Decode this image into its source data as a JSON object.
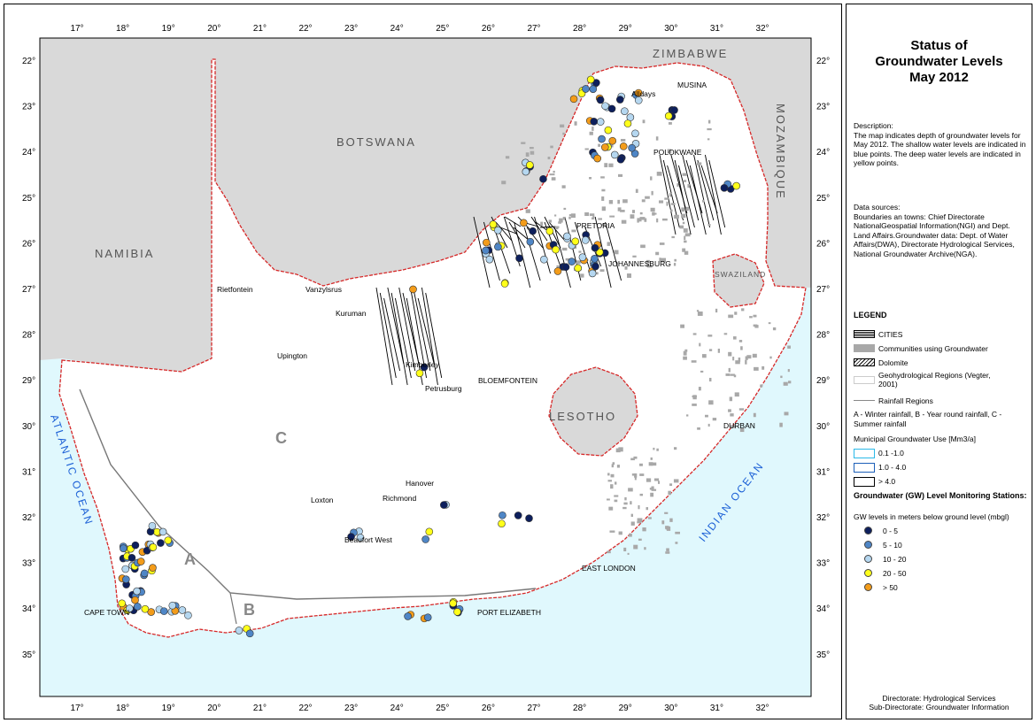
{
  "map": {
    "longitude_labels": [
      "17°",
      "18°",
      "19°",
      "20°",
      "21°",
      "22°",
      "23°",
      "24°",
      "25°",
      "26°",
      "27°",
      "28°",
      "29°",
      "30°",
      "31°",
      "32°"
    ],
    "latitude_labels": [
      "22°",
      "23°",
      "24°",
      "25°",
      "26°",
      "27°",
      "28°",
      "29°",
      "30°",
      "31°",
      "32°",
      "33°",
      "34°",
      "35°"
    ],
    "countries": {
      "zimbabwe": "ZIMBABWE",
      "botswana": "BOTSWANA",
      "namibia": "NAMIBIA",
      "mozambique": "MOZAMBIQUE",
      "lesotho": "LESOTHO",
      "swaziland": "SWAZILAND"
    },
    "oceans": {
      "atlantic": "ATLANTIC OCEAN",
      "indian": "INDIAN OCEAN"
    },
    "rainfall_zones": {
      "a": "A",
      "b": "B",
      "c": "C"
    },
    "cities": {
      "musina": "MUSINA",
      "alldays": "Alldays",
      "polokwane": "POLOKWANE",
      "pretoria": "PRETORIA",
      "johannesburg": "JOHANNESBURG",
      "rietfontein": "Rietfontein",
      "vanzylsrus": "Vanzylsrus",
      "kuruman": "Kuruman",
      "upington": "Upington",
      "kimberley": "Kimberley",
      "petrusburg": "Petrusburg",
      "bloemfontein": "BLOEMFONTEIN",
      "durban": "DURBAN",
      "hanover": "Hanover",
      "loxton": "Loxton",
      "richmond": "Richmond",
      "beaufort_west": "Beaufort West",
      "east_london": "EAST LONDON",
      "port_elizabeth": "PORT ELIZABETH",
      "cape_town": "CAPE TOWN"
    },
    "colors": {
      "land": "#ffffff",
      "neighbours": "#d9d9d9",
      "sea": "#e0f8fd",
      "border": "#d62828",
      "gw_0_5": "#0d1f5c",
      "gw_5_10": "#4f86c6",
      "gw_10_20": "#b5d7f0",
      "gw_20_50": "#ffff1a",
      "gw_gt_50": "#f39c1a"
    }
  },
  "panel": {
    "title_line1": "Status of",
    "title_line2": "Groundwater Levels",
    "title_line3": "May 2012",
    "description_label": "Description:",
    "description_text": "The map indicates depth of groundwater levels for May 2012. The shallow water levels are indicated in blue points. The deep water levels are indicated in yellow points.",
    "sources_label": "Data sources:",
    "sources_text": "Boundaries an towns: Chief Directorate NationalGeospatial Information(NGI) and Dept. Land Affairs.Groundwater data: Dept. of Water Affairs(DWA), Directorate Hydrological Services, National Groundwater Archive(NGA).",
    "legend_title": "LEGEND",
    "legend": {
      "cities": "CITIES",
      "communities": "Communities using Groundwater",
      "dolomite": "Dolomite",
      "geohydro": "Geohydrological Regions (Vegter, 2001)",
      "rainfall": "Rainfall Regions",
      "rainfall_note": "A - Winter rainfall, B - Year round rainfall, C - Summer rainfall",
      "municipal_title": "Municipal Groundwater Use [Mm3/a]",
      "mun_1": "0.1 -1.0",
      "mun_2": "1.0 - 4.0",
      "mun_3": "> 4.0",
      "stations_title": "Groundwater (GW) Level Monitoring Stations:",
      "stations_sub": "GW levels in meters below ground level (mbgl)",
      "lvl_1": "0 - 5",
      "lvl_2": "5 - 10",
      "lvl_3": "10 - 20",
      "lvl_4": "20 - 50",
      "lvl_5": "> 50"
    },
    "footer_line1": "Directorate: Hydrological Services",
    "footer_line2": "Sub-Directorate: Groundwater Information"
  }
}
